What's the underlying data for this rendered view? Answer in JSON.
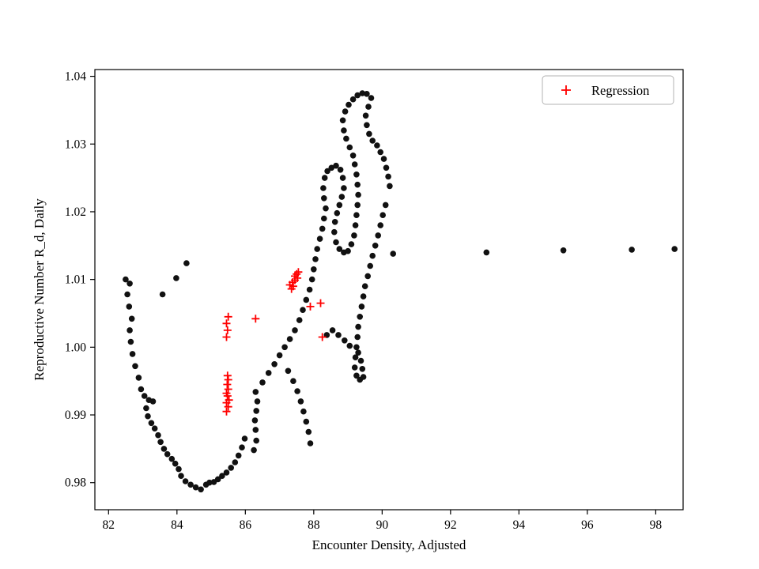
{
  "figure": {
    "background": "#ffffff"
  },
  "chart_data": {
    "type": "scatter",
    "title": "",
    "xlabel": "Encounter Density, Adjusted",
    "ylabel": "Reproductive Number R_d, Daily",
    "xlim": [
      81.6,
      98.8
    ],
    "ylim": [
      0.976,
      1.041
    ],
    "xticks": [
      82,
      84,
      86,
      88,
      90,
      92,
      94,
      96,
      98
    ],
    "yticks": [
      0.98,
      0.99,
      1.0,
      1.01,
      1.02,
      1.03,
      1.04
    ],
    "ytick_labels": [
      "0.98",
      "0.99",
      "1.00",
      "1.01",
      "1.02",
      "1.03",
      "1.04"
    ],
    "grid": false,
    "legend": {
      "position": "upper right",
      "entries": [
        {
          "label": "Regression",
          "marker": "plus",
          "color": "#ff0000"
        }
      ]
    },
    "series": [
      {
        "name": "trajectory",
        "marker": "circle",
        "color": "#111111",
        "points": [
          [
            82.5,
            1.01
          ],
          [
            82.62,
            1.0094
          ],
          [
            82.55,
            1.0078
          ],
          [
            82.6,
            1.006
          ],
          [
            82.68,
            1.0042
          ],
          [
            82.62,
            1.0025
          ],
          [
            82.65,
            1.0008
          ],
          [
            82.7,
            0.999
          ],
          [
            82.78,
            0.9972
          ],
          [
            82.88,
            0.9955
          ],
          [
            82.95,
            0.9938
          ],
          [
            83.05,
            0.9928
          ],
          [
            83.18,
            0.9922
          ],
          [
            83.3,
            0.992
          ],
          [
            83.1,
            0.991
          ],
          [
            83.15,
            0.9898
          ],
          [
            83.25,
            0.9888
          ],
          [
            83.35,
            0.988
          ],
          [
            83.45,
            0.987
          ],
          [
            83.52,
            0.986
          ],
          [
            83.62,
            0.985
          ],
          [
            83.72,
            0.9842
          ],
          [
            83.85,
            0.9835
          ],
          [
            83.95,
            0.9828
          ],
          [
            84.05,
            0.982
          ],
          [
            84.12,
            0.981
          ],
          [
            84.25,
            0.9802
          ],
          [
            84.4,
            0.9797
          ],
          [
            84.55,
            0.9793
          ],
          [
            84.7,
            0.979
          ],
          [
            84.85,
            0.9797
          ],
          [
            84.95,
            0.98
          ],
          [
            85.08,
            0.9801
          ],
          [
            85.2,
            0.9805
          ],
          [
            85.32,
            0.981
          ],
          [
            85.45,
            0.9815
          ],
          [
            85.58,
            0.9822
          ],
          [
            85.7,
            0.983
          ],
          [
            85.8,
            0.984
          ],
          [
            85.9,
            0.9852
          ],
          [
            85.98,
            0.9865
          ],
          [
            86.25,
            0.9848
          ],
          [
            86.32,
            0.9862
          ],
          [
            86.3,
            0.9878
          ],
          [
            86.28,
            0.9892
          ],
          [
            86.32,
            0.9906
          ],
          [
            86.35,
            0.992
          ],
          [
            86.3,
            0.9934
          ],
          [
            86.5,
            0.9948
          ],
          [
            86.68,
            0.9962
          ],
          [
            86.85,
            0.9975
          ],
          [
            87.0,
            0.9988
          ],
          [
            87.15,
            1.0
          ],
          [
            87.3,
            1.0012
          ],
          [
            87.45,
            1.0025
          ],
          [
            87.58,
            1.004
          ],
          [
            87.68,
            1.0055
          ],
          [
            87.78,
            1.007
          ],
          [
            87.88,
            1.0085
          ],
          [
            87.95,
            1.01
          ],
          [
            88.0,
            1.0115
          ],
          [
            88.05,
            1.013
          ],
          [
            88.1,
            1.0145
          ],
          [
            88.18,
            1.016
          ],
          [
            88.25,
            1.0175
          ],
          [
            88.3,
            1.019
          ],
          [
            88.35,
            1.0205
          ],
          [
            88.3,
            1.022
          ],
          [
            88.28,
            1.0235
          ],
          [
            88.32,
            1.025
          ],
          [
            88.4,
            1.026
          ],
          [
            88.52,
            1.0265
          ],
          [
            88.65,
            1.0268
          ],
          [
            88.78,
            1.0262
          ],
          [
            88.85,
            1.025
          ],
          [
            88.88,
            1.0235
          ],
          [
            88.82,
            1.0222
          ],
          [
            88.75,
            1.021
          ],
          [
            88.68,
            1.0198
          ],
          [
            88.62,
            1.0185
          ],
          [
            88.6,
            1.017
          ],
          [
            88.65,
            1.0155
          ],
          [
            88.75,
            1.0145
          ],
          [
            88.88,
            1.014
          ],
          [
            89.0,
            1.0142
          ],
          [
            89.1,
            1.0152
          ],
          [
            89.18,
            1.0165
          ],
          [
            89.22,
            1.018
          ],
          [
            89.25,
            1.0195
          ],
          [
            89.28,
            1.021
          ],
          [
            89.3,
            1.0225
          ],
          [
            89.28,
            1.024
          ],
          [
            89.25,
            1.0255
          ],
          [
            89.2,
            1.027
          ],
          [
            89.15,
            1.0283
          ],
          [
            89.05,
            1.0295
          ],
          [
            88.95,
            1.0308
          ],
          [
            88.88,
            1.032
          ],
          [
            88.85,
            1.0335
          ],
          [
            88.92,
            1.0348
          ],
          [
            89.02,
            1.0358
          ],
          [
            89.15,
            1.0366
          ],
          [
            89.28,
            1.0372
          ],
          [
            89.42,
            1.0375
          ],
          [
            89.55,
            1.0374
          ],
          [
            89.68,
            1.0368
          ],
          [
            89.6,
            1.0355
          ],
          [
            89.52,
            1.0342
          ],
          [
            89.55,
            1.0328
          ],
          [
            89.62,
            1.0315
          ],
          [
            89.72,
            1.0305
          ],
          [
            89.85,
            1.0298
          ],
          [
            89.95,
            1.0288
          ],
          [
            90.05,
            1.0278
          ],
          [
            90.12,
            1.0265
          ],
          [
            90.18,
            1.0252
          ],
          [
            90.22,
            1.0238
          ],
          [
            90.1,
            1.021
          ],
          [
            90.02,
            1.0195
          ],
          [
            89.95,
            1.018
          ],
          [
            89.88,
            1.0165
          ],
          [
            89.8,
            1.015
          ],
          [
            89.72,
            1.0135
          ],
          [
            89.65,
            1.012
          ],
          [
            89.58,
            1.0105
          ],
          [
            89.5,
            1.009
          ],
          [
            89.45,
            1.0075
          ],
          [
            89.4,
            1.006
          ],
          [
            89.35,
            1.0045
          ],
          [
            89.3,
            1.003
          ],
          [
            89.28,
            1.0015
          ],
          [
            89.25,
            1.0
          ],
          [
            89.22,
            0.9985
          ],
          [
            89.2,
            0.997
          ],
          [
            89.25,
            0.9958
          ],
          [
            89.35,
            0.9952
          ],
          [
            89.45,
            0.9956
          ],
          [
            89.42,
            0.9968
          ],
          [
            89.38,
            0.998
          ],
          [
            89.3,
            0.9992
          ],
          [
            89.05,
            1.0002
          ],
          [
            88.9,
            1.001
          ],
          [
            88.72,
            1.0018
          ],
          [
            88.55,
            1.0025
          ],
          [
            88.38,
            1.0018
          ],
          [
            87.25,
            0.9965
          ],
          [
            87.4,
            0.995
          ],
          [
            87.52,
            0.9935
          ],
          [
            87.62,
            0.992
          ],
          [
            87.7,
            0.9905
          ],
          [
            87.78,
            0.989
          ],
          [
            87.85,
            0.9875
          ],
          [
            87.9,
            0.9858
          ],
          [
            83.58,
            1.0078
          ],
          [
            83.98,
            1.0102
          ],
          [
            84.28,
            1.0124
          ],
          [
            90.32,
            1.0138
          ],
          [
            93.05,
            1.014
          ],
          [
            95.3,
            1.0143
          ],
          [
            97.3,
            1.0144
          ],
          [
            98.55,
            1.0145
          ]
        ]
      },
      {
        "name": "Regression",
        "marker": "plus",
        "color": "#ff0000",
        "points": [
          [
            85.45,
            0.9905
          ],
          [
            85.5,
            0.9912
          ],
          [
            85.45,
            0.9918
          ],
          [
            85.52,
            0.9922
          ],
          [
            85.48,
            0.9928
          ],
          [
            85.45,
            0.9932
          ],
          [
            85.5,
            0.9938
          ],
          [
            85.47,
            0.9945
          ],
          [
            85.5,
            0.9952
          ],
          [
            85.48,
            0.9958
          ],
          [
            85.45,
            1.0015
          ],
          [
            85.48,
            1.0025
          ],
          [
            85.45,
            1.0035
          ],
          [
            85.5,
            1.0045
          ],
          [
            86.3,
            1.0042
          ],
          [
            87.3,
            1.0092
          ],
          [
            87.4,
            1.009
          ],
          [
            87.38,
            1.0096
          ],
          [
            87.45,
            1.0099
          ],
          [
            87.52,
            1.0102
          ],
          [
            87.45,
            1.0105
          ],
          [
            87.5,
            1.0108
          ],
          [
            87.55,
            1.0111
          ],
          [
            87.35,
            1.0086
          ],
          [
            87.9,
            1.006
          ],
          [
            88.2,
            1.0065
          ],
          [
            88.25,
            1.0015
          ]
        ]
      }
    ]
  }
}
